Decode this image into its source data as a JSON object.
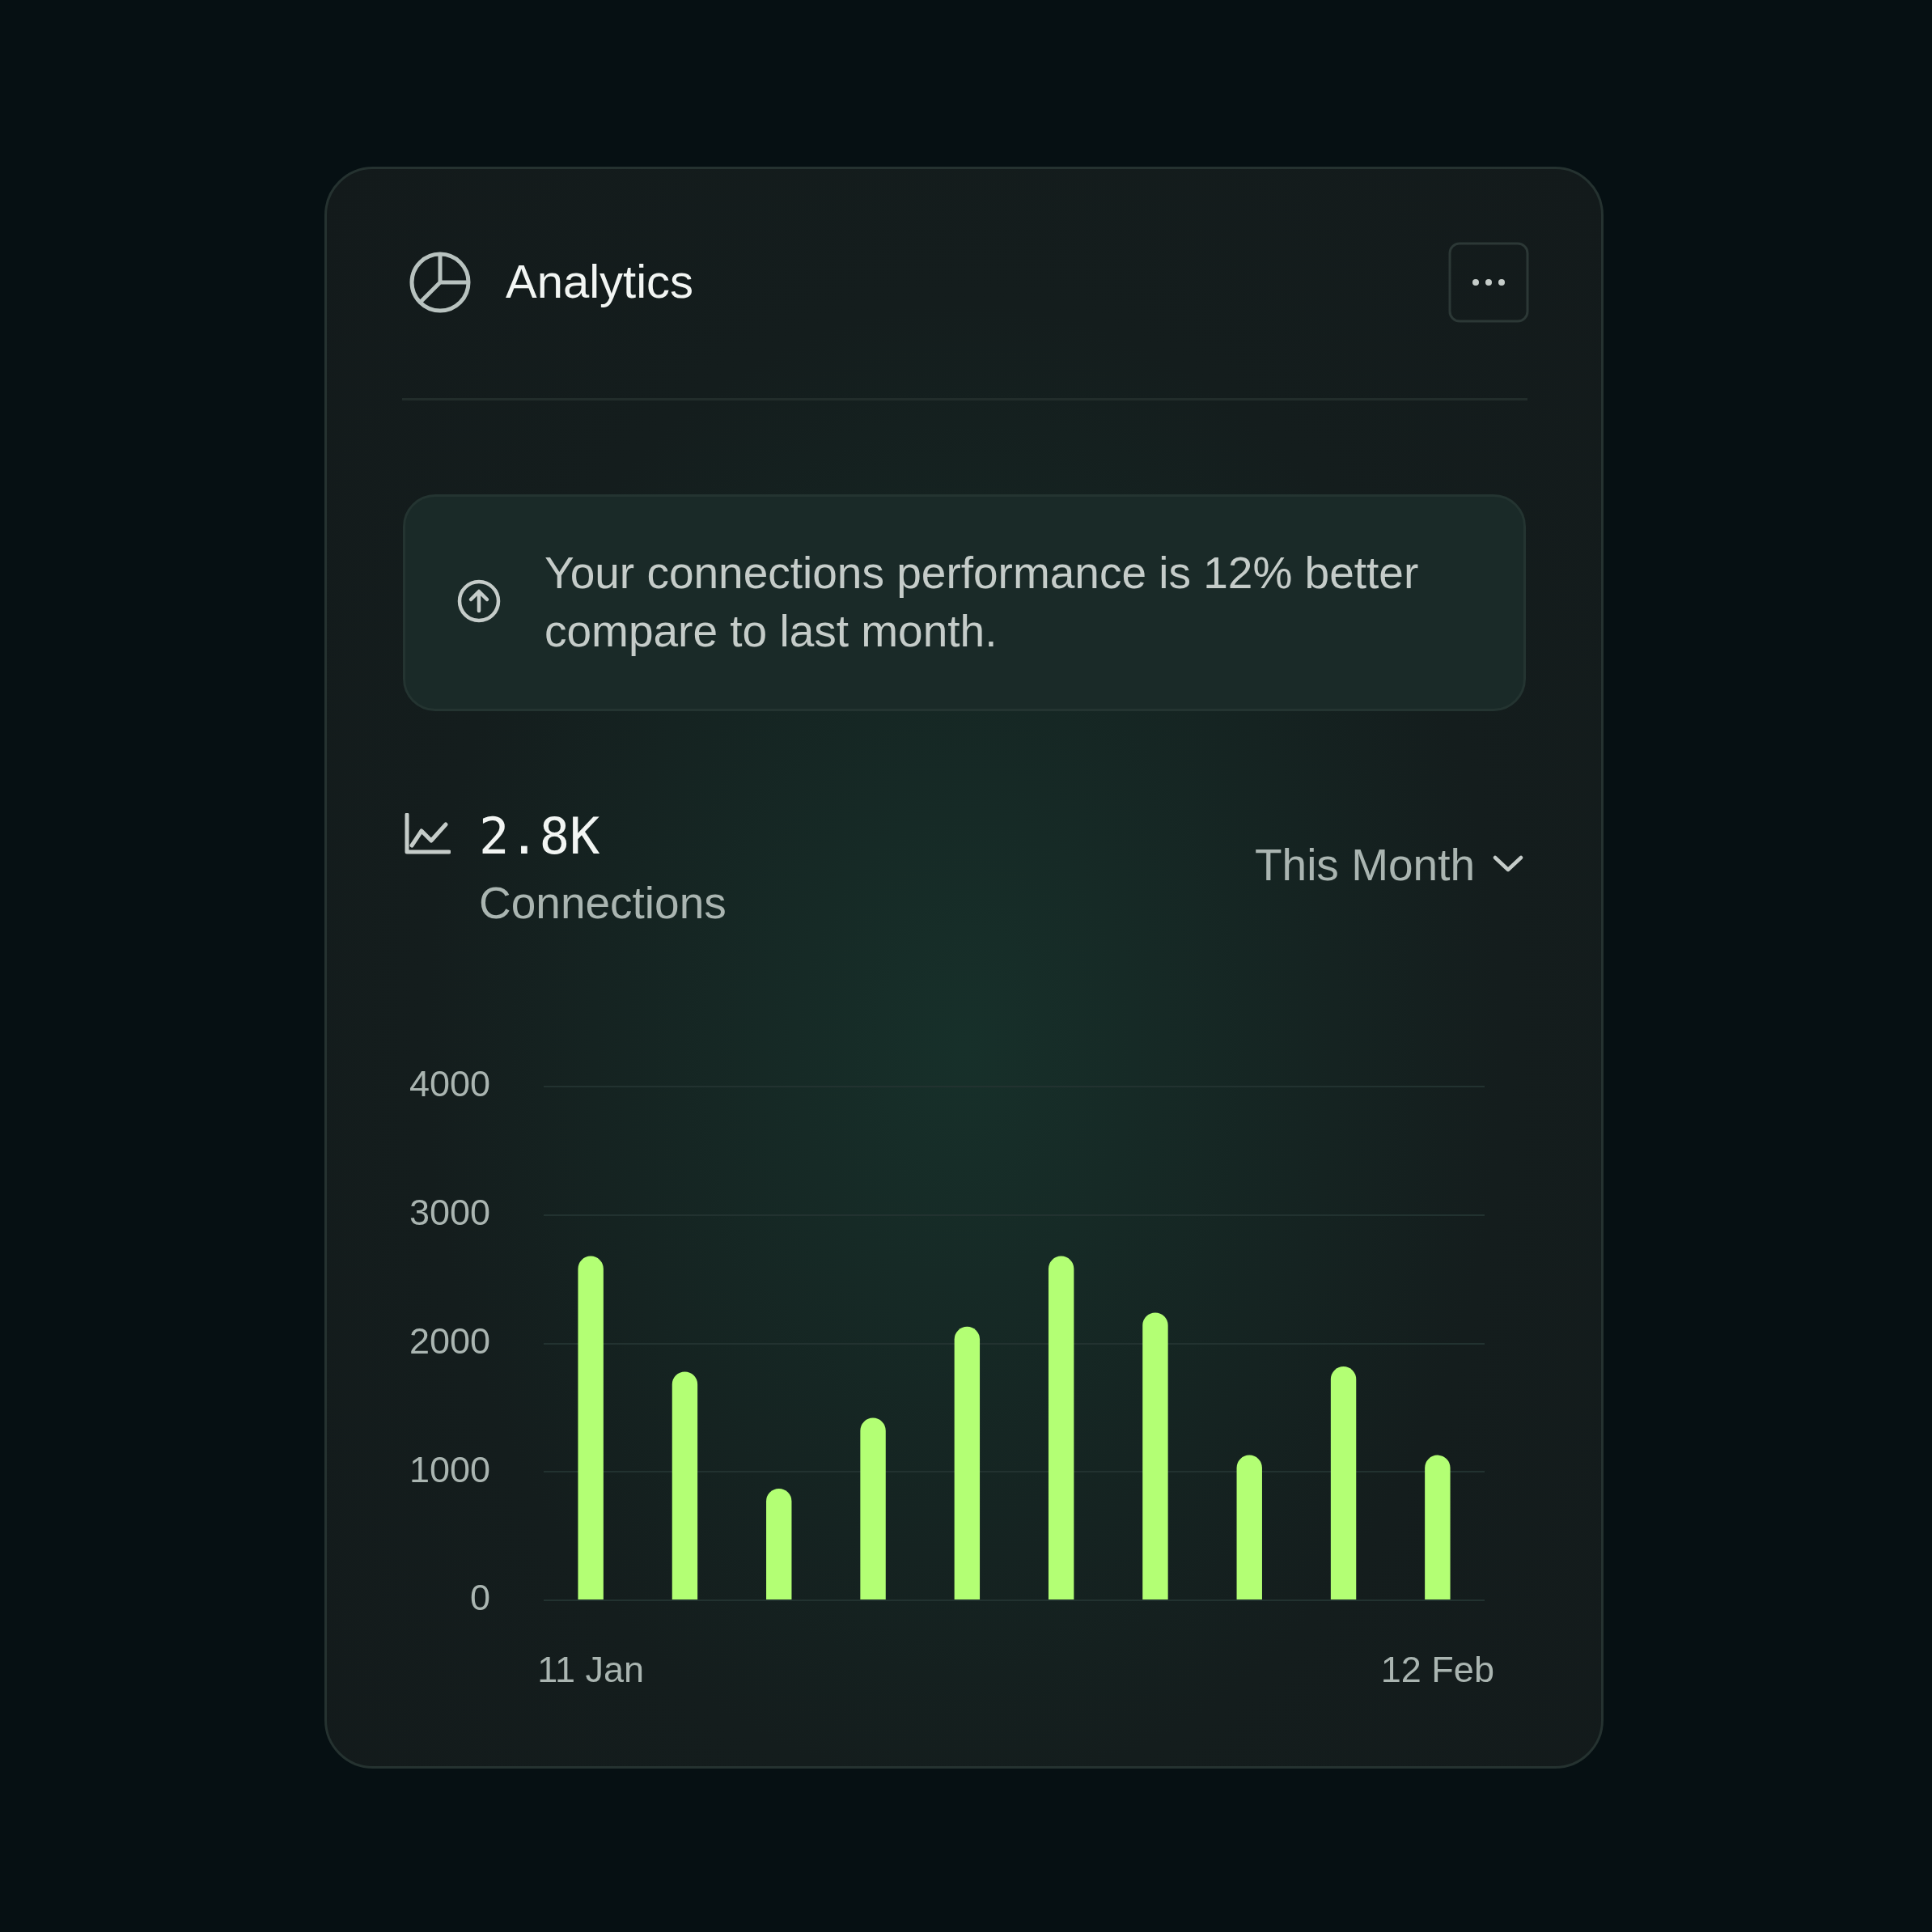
{
  "chart_data": {
    "type": "bar",
    "title": "Analytics",
    "categories": [
      "11 Jan",
      null,
      null,
      null,
      null,
      null,
      null,
      null,
      null,
      "12 Feb"
    ],
    "values": [
      2680,
      1780,
      870,
      1420,
      2130,
      2680,
      2240,
      1130,
      1820,
      1130
    ],
    "color": "#b3ff74",
    "ylim": [
      0,
      4000
    ],
    "yticks": [
      0,
      1000,
      2000,
      3000,
      4000
    ],
    "grid": "y",
    "annotations": [
      "Your connections performance is 12% better compare to last month.",
      "2.8K",
      "Connections",
      "This Month"
    ]
  }
}
